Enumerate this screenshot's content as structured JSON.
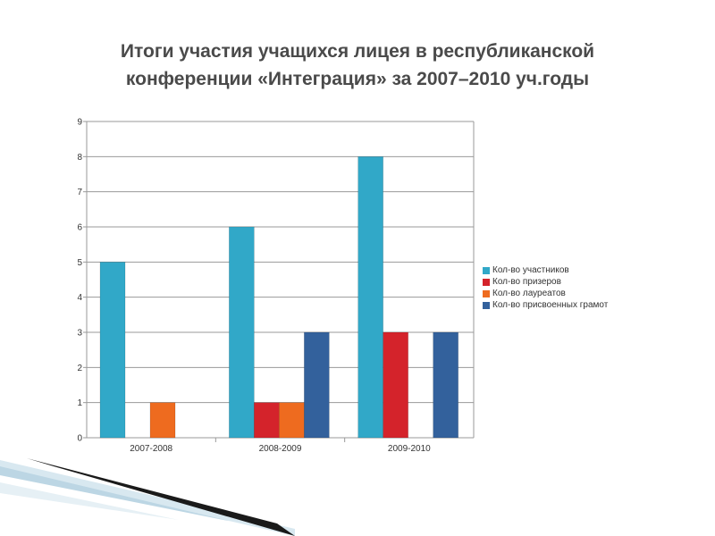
{
  "slide": {
    "title_line1": "Итоги участия учащихся лицея в республиканской",
    "title_line2": "конференции «Интеграция» за 2007–2010 уч.годы"
  },
  "chart_data": {
    "type": "bar",
    "title": "Итоги участия учащихся лицея в республиканской конференции «Интеграция» за 2007–2010 уч.годы",
    "categories": [
      "2007-2008",
      "2008-2009",
      "2009-2010"
    ],
    "series": [
      {
        "name": "Кол-во участников",
        "color": "#31a8c8",
        "values": [
          5,
          6,
          8
        ]
      },
      {
        "name": "Кол-во призеров",
        "color": "#d4232b",
        "values": [
          0,
          1,
          3
        ]
      },
      {
        "name": "Кол-во лауреатов",
        "color": "#ee6b1f",
        "values": [
          1,
          1,
          0
        ]
      },
      {
        "name": "Кол-во присвоенных грамот",
        "color": "#33619c",
        "values": [
          0,
          3,
          3
        ]
      }
    ],
    "ylim": [
      0,
      9
    ],
    "yticks": [
      "0",
      "1",
      "2",
      "3",
      "4",
      "5",
      "6",
      "7",
      "8",
      "9"
    ],
    "grid": true,
    "legend_position": "right"
  }
}
